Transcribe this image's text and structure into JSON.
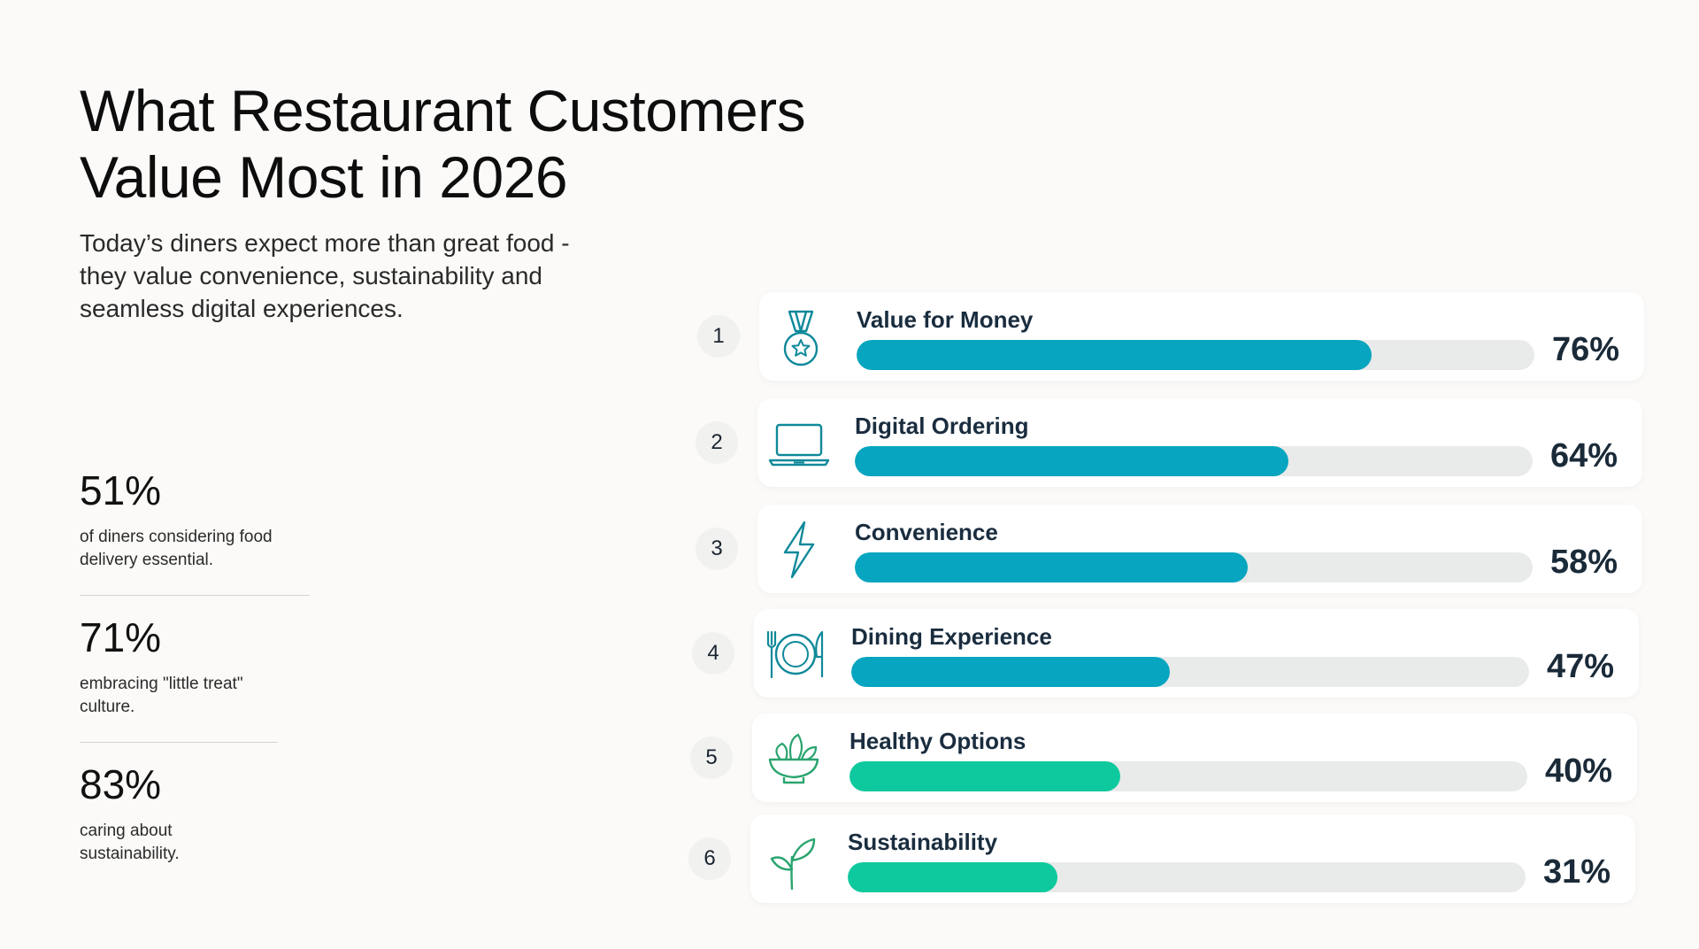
{
  "header": {
    "title_line1": "What Restaurant Customers",
    "title_line2": "Value Most in 2026",
    "subtitle_line1": "Today’s diners expect more than great food -",
    "subtitle_line2": "they value convenience, sustainability and",
    "subtitle_line3": "seamless digital experiences."
  },
  "stats": [
    {
      "value": "51%",
      "desc_line1": "of diners considering food",
      "desc_line2": "delivery essential."
    },
    {
      "value": "71%",
      "desc_line1": "embracing \"little treat\"",
      "desc_line2": "culture."
    },
    {
      "value": "83%",
      "desc_line1": "caring about",
      "desc_line2": "sustainability."
    }
  ],
  "colors": {
    "teal": "#07a5bf",
    "green": "#0fc99e",
    "track": "#e9eaea",
    "icon_teal": "#10899a",
    "icon_green": "#2aa46f"
  },
  "chart_data": {
    "type": "bar",
    "orientation": "horizontal",
    "categories": [
      "Value for Money",
      "Digital Ordering",
      "Convenience",
      "Dining Experience",
      "Healthy Options",
      "Sustainability"
    ],
    "values": [
      76,
      64,
      58,
      47,
      40,
      31
    ],
    "ranks": [
      "1",
      "2",
      "3",
      "4",
      "5",
      "6"
    ],
    "labels": [
      "76%",
      "64%",
      "58%",
      "47%",
      "40%",
      "31%"
    ],
    "icons": [
      "medal-icon",
      "laptop-icon",
      "lightning-bolt-icon",
      "plate-cutlery-icon",
      "salad-bowl-icon",
      "sprout-icon"
    ],
    "bar_colors": [
      "#07a5bf",
      "#07a5bf",
      "#07a5bf",
      "#07a5bf",
      "#0fc99e",
      "#0fc99e"
    ],
    "xlim": [
      0,
      100
    ]
  }
}
